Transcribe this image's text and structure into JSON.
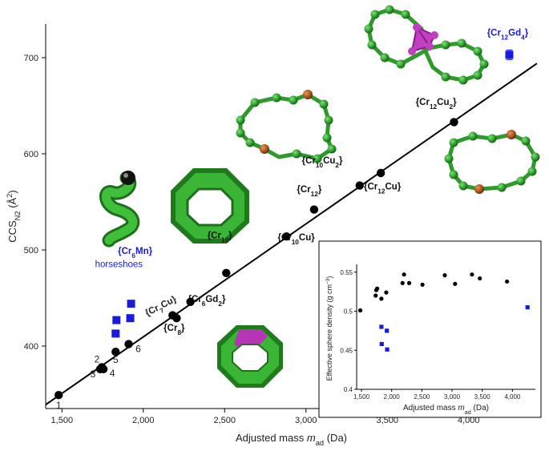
{
  "chart_data": [
    {
      "type": "scatter",
      "title": "",
      "xlabel": "Adjusted mass m_ad (Da)",
      "xlabel_parts": {
        "main": "Adjusted mass ",
        "var": "m",
        "sub": "ad",
        "unit": " (Da)"
      },
      "ylabel_parts": {
        "main": "CCS",
        "sub": "N2",
        "unit_open": " (Å",
        "sup": "2",
        "unit_close": ")"
      },
      "xlim": [
        1400,
        4420
      ],
      "ylim": [
        335,
        735
      ],
      "x_ticks": [
        {
          "v": 1500,
          "label": "1,500"
        },
        {
          "v": 2000,
          "label": "2,000"
        },
        {
          "v": 2500,
          "label": "2,500"
        },
        {
          "v": 3000,
          "label": "3,000"
        },
        {
          "v": 3500,
          "label": "3,500"
        },
        {
          "v": 4000,
          "label": "4,000"
        }
      ],
      "y_ticks": [
        {
          "v": 400,
          "label": "400"
        },
        {
          "v": 500,
          "label": "500"
        },
        {
          "v": 600,
          "label": "600"
        },
        {
          "v": 700,
          "label": "700"
        }
      ],
      "grid": false,
      "fit_line": {
        "x": [
          1400,
          4420
        ],
        "y": [
          339,
          694
        ],
        "color": "#000000"
      },
      "series": [
        {
          "color": "#000000",
          "marker": "circle",
          "points": [
            {
              "x": 1480,
              "y": 349,
              "label": "1"
            },
            {
              "x": 1735,
              "y": 376,
              "label": "3"
            },
            {
              "x": 1745,
              "y": 378,
              "label": "2"
            },
            {
              "x": 1755,
              "y": 376,
              "label": "4"
            },
            {
              "x": 1830,
              "y": 394,
              "label": "5"
            },
            {
              "x": 1910,
              "y": 402,
              "label": "6"
            },
            {
              "x": 2180,
              "y": 432
            },
            {
              "x": 2205,
              "y": 429
            },
            {
              "x": 2290,
              "y": 446
            },
            {
              "x": 2510,
              "y": 476
            },
            {
              "x": 2880,
              "y": 514
            },
            {
              "x": 3050,
              "y": 542
            },
            {
              "x": 3330,
              "y": 567
            },
            {
              "x": 3460,
              "y": 580
            },
            {
              "x": 3910,
              "y": 633
            }
          ]
        },
        {
          "color": "#1a1adc",
          "marker": "square",
          "points": [
            {
              "x": 1830,
              "y": 413
            },
            {
              "x": 1835,
              "y": 427
            },
            {
              "x": 1920,
              "y": 429
            },
            {
              "x": 1925,
              "y": 444
            },
            {
              "x": 4250,
              "y": 703,
              "yerr": 5
            }
          ]
        }
      ],
      "annotations": [
        {
          "parts": [
            [
              "{Cr",
              ""
            ],
            [
              "12",
              "sub"
            ],
            [
              "Gd",
              ""
            ],
            [
              "4",
              "sub"
            ],
            [
              "}",
              ""
            ]
          ],
          "x": 4240,
          "y": 723,
          "color": "#1a1adc",
          "bold": true
        },
        {
          "parts": [
            [
              "{Cr",
              ""
            ],
            [
              "12",
              "sub"
            ],
            [
              "Cu",
              ""
            ],
            [
              "2",
              "sub"
            ],
            [
              "}",
              ""
            ]
          ],
          "x": 3800,
          "y": 651,
          "color": "#111111",
          "bold": true
        },
        {
          "parts": [
            [
              "{Cr",
              ""
            ],
            [
              "10",
              "sub"
            ],
            [
              "Cu",
              ""
            ],
            [
              "2",
              "sub"
            ],
            [
              "}",
              ""
            ]
          ],
          "x": 3100,
          "y": 590,
          "color": "#111111",
          "bold": true
        },
        {
          "parts": [
            [
              "{Cr",
              ""
            ],
            [
              "12",
              "sub"
            ],
            [
              "Cu}",
              ""
            ]
          ],
          "x": 3470,
          "y": 563,
          "color": "#111111",
          "bold": true
        },
        {
          "parts": [
            [
              "{Cr",
              ""
            ],
            [
              "12",
              "sub"
            ],
            [
              "}",
              ""
            ]
          ],
          "x": 3020,
          "y": 560,
          "color": "#111111",
          "bold": true
        },
        {
          "parts": [
            [
              "{Cr",
              ""
            ],
            [
              "10",
              "sub"
            ],
            [
              "Cu}",
              ""
            ]
          ],
          "x": 2940,
          "y": 510,
          "color": "#111111",
          "bold": true
        },
        {
          "parts": [
            [
              "{Cr",
              ""
            ],
            [
              "10",
              "sub"
            ],
            [
              "}",
              ""
            ]
          ],
          "x": 2470,
          "y": 512,
          "color": "#111111",
          "bold": true
        },
        {
          "parts": [
            [
              "{Cr",
              ""
            ],
            [
              "6",
              "sub"
            ],
            [
              "Gd",
              ""
            ],
            [
              "2",
              "sub"
            ],
            [
              "}",
              ""
            ]
          ],
          "x": 2390,
          "y": 446,
          "color": "#111111",
          "bold": true
        },
        {
          "parts": [
            [
              "{Cr",
              ""
            ],
            [
              "8",
              "sub"
            ],
            [
              "}",
              ""
            ]
          ],
          "x": 2190,
          "y": 416,
          "color": "#111111",
          "bold": true
        },
        {
          "parts": [
            [
              "{Cr",
              ""
            ],
            [
              "6",
              "sub"
            ],
            [
              "Mn}",
              ""
            ]
          ],
          "x": 1950,
          "y": 496,
          "color": "#1a1adc",
          "bold": true
        },
        {
          "parts": [
            [
              "horseshoes",
              ""
            ]
          ],
          "x": 1850,
          "y": 482,
          "color": "#1a1adc",
          "bold": false
        }
      ],
      "rotated_label": {
        "parts": [
          [
            "{Cr",
            ""
          ],
          [
            "7",
            "sub"
          ],
          [
            "Cu}",
            ""
          ]
        ],
        "x": 2115,
        "y": 439,
        "angle": -27
      }
    },
    {
      "type": "scatter",
      "title": "",
      "xlabel_parts": {
        "main": "Adjusted mass ",
        "var": "m",
        "sub": "ad",
        "unit": " (Da)"
      },
      "ylabel_parts": {
        "main": "Effective sphere density (g cm",
        "sup": "−3",
        "close": ")"
      },
      "xlim": [
        1420,
        4380
      ],
      "ylim": [
        0.4,
        0.56
      ],
      "x_ticks": [
        {
          "v": 1500,
          "label": "1,500"
        },
        {
          "v": 2000,
          "label": "2,000"
        },
        {
          "v": 2500,
          "label": "2,500"
        },
        {
          "v": 3000,
          "label": "3,000"
        },
        {
          "v": 3500,
          "label": "3,500"
        },
        {
          "v": 4000,
          "label": "4,000"
        }
      ],
      "y_ticks": [
        {
          "v": 0.4,
          "label": "0.4"
        },
        {
          "v": 0.45,
          "label": "0.45"
        },
        {
          "v": 0.5,
          "label": "0.5"
        },
        {
          "v": 0.55,
          "label": "0.55"
        }
      ],
      "series": [
        {
          "color": "#000000",
          "marker": "circle",
          "points": [
            {
              "x": 1480,
              "y": 0.501
            },
            {
              "x": 1735,
              "y": 0.52
            },
            {
              "x": 1745,
              "y": 0.527
            },
            {
              "x": 1760,
              "y": 0.529
            },
            {
              "x": 1830,
              "y": 0.516
            },
            {
              "x": 1910,
              "y": 0.524
            },
            {
              "x": 2180,
              "y": 0.536
            },
            {
              "x": 2205,
              "y": 0.547
            },
            {
              "x": 2290,
              "y": 0.536
            },
            {
              "x": 2510,
              "y": 0.534
            },
            {
              "x": 2880,
              "y": 0.546
            },
            {
              "x": 3050,
              "y": 0.535
            },
            {
              "x": 3330,
              "y": 0.547
            },
            {
              "x": 3460,
              "y": 0.542
            },
            {
              "x": 3910,
              "y": 0.538
            }
          ]
        },
        {
          "color": "#1a1adc",
          "marker": "square",
          "points": [
            {
              "x": 1830,
              "y": 0.48
            },
            {
              "x": 1835,
              "y": 0.458
            },
            {
              "x": 1920,
              "y": 0.475
            },
            {
              "x": 1925,
              "y": 0.451
            },
            {
              "x": 4250,
              "y": 0.505
            }
          ]
        }
      ]
    }
  ]
}
